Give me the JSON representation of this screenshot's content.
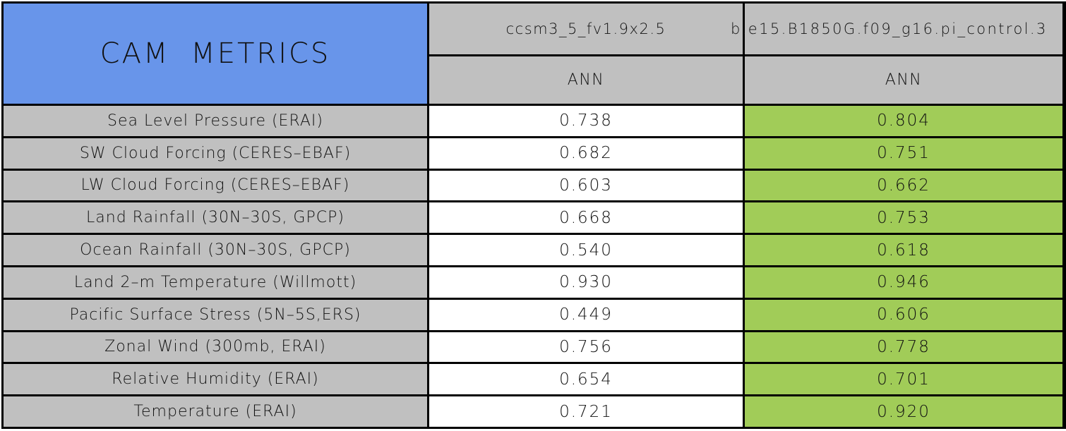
{
  "title": "CAM METRICS",
  "colors": {
    "title_bg": "#6895EA",
    "header_bg": "#C0C0C0",
    "label_bg": "#C0C0C0",
    "model1_col_bg": "#FFFFFF",
    "model2_col_bg": "#A1CC58",
    "border": "#000000",
    "text": "#111111"
  },
  "header": {
    "model1": "ccsm3_5_fv1.9x2.5",
    "model2": "b.e15.B1850G.f09_g16.pi_control.3",
    "season1": "ANN",
    "season2": "ANN"
  },
  "rows": [
    {
      "label": "Sea Level Pressure (ERAI)",
      "v1": "0.738",
      "v2": "0.804"
    },
    {
      "label": "SW Cloud Forcing (CERES–EBAF)",
      "v1": "0.682",
      "v2": "0.751"
    },
    {
      "label": "LW Cloud Forcing (CERES–EBAF)",
      "v1": "0.603",
      "v2": "0.662"
    },
    {
      "label": "Land Rainfall (30N–30S, GPCP)",
      "v1": "0.668",
      "v2": "0.753"
    },
    {
      "label": "Ocean Rainfall (30N–30S, GPCP)",
      "v1": "0.540",
      "v2": "0.618"
    },
    {
      "label": "Land 2–m Temperature (Willmott)",
      "v1": "0.930",
      "v2": "0.946"
    },
    {
      "label": "Pacific Surface Stress (5N–5S,ERS)",
      "v1": "0.449",
      "v2": "0.606"
    },
    {
      "label": "Zonal Wind (300mb, ERAI)",
      "v1": "0.756",
      "v2": "0.778"
    },
    {
      "label": "Relative Humidity (ERAI)",
      "v1": "0.654",
      "v2": "0.701"
    },
    {
      "label": "Temperature (ERAI)",
      "v1": "0.721",
      "v2": "0.920"
    }
  ],
  "chart_data": {
    "type": "table",
    "title": "CAM METRICS",
    "categories": [
      "Sea Level Pressure (ERAI)",
      "SW Cloud Forcing (CERES-EBAF)",
      "LW Cloud Forcing (CERES-EBAF)",
      "Land Rainfall (30N-30S, GPCP)",
      "Ocean Rainfall (30N-30S, GPCP)",
      "Land 2-m Temperature (Willmott)",
      "Pacific Surface Stress (5N-5S,ERS)",
      "Zonal Wind (300mb, ERAI)",
      "Relative Humidity (ERAI)",
      "Temperature (ERAI)"
    ],
    "series": [
      {
        "name": "ccsm3_5_fv1.9x2.5",
        "season": "ANN",
        "values": [
          0.738,
          0.682,
          0.603,
          0.668,
          0.54,
          0.93,
          0.449,
          0.756,
          0.654,
          0.721
        ]
      },
      {
        "name": "b.e15.B1850G.f09_g16.pi_control.3",
        "season": "ANN",
        "values": [
          0.804,
          0.751,
          0.662,
          0.753,
          0.618,
          0.946,
          0.606,
          0.778,
          0.701,
          0.92
        ]
      }
    ]
  }
}
